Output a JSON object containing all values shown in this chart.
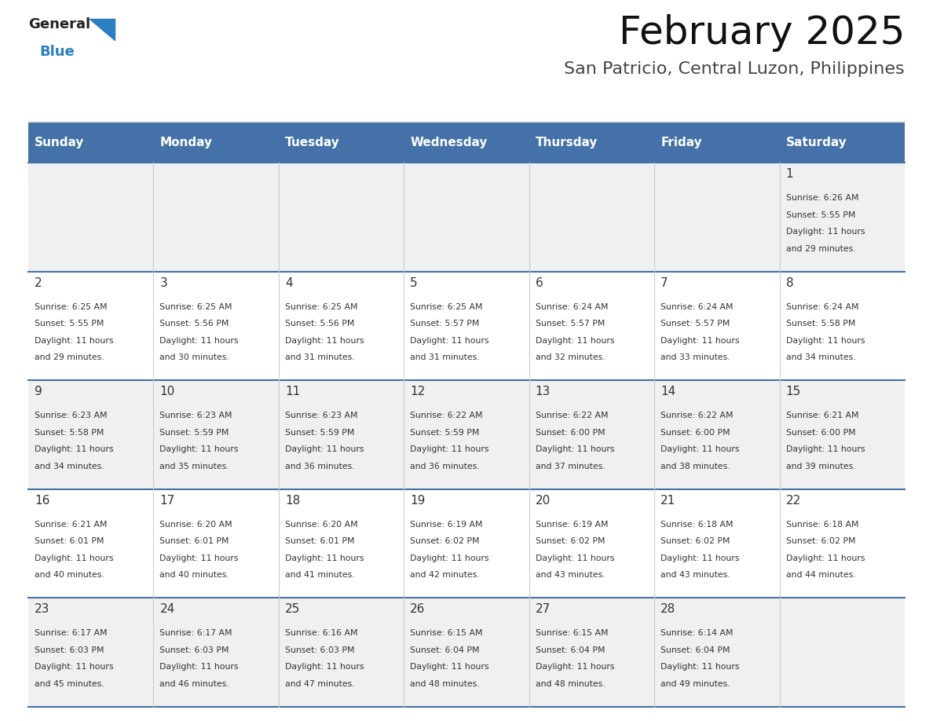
{
  "title": "February 2025",
  "subtitle": "San Patricio, Central Luzon, Philippines",
  "header_color": "#4472a8",
  "header_text_color": "#ffffff",
  "day_headers": [
    "Sunday",
    "Monday",
    "Tuesday",
    "Wednesday",
    "Thursday",
    "Friday",
    "Saturday"
  ],
  "background_color": "#ffffff",
  "cell_bg_even": "#f0f0f0",
  "cell_bg_odd": "#ffffff",
  "cell_border_color": "#4472a8",
  "text_color": "#333333",
  "logo_color1": "#222222",
  "logo_color2": "#2a7fc1",
  "logo_triangle_color": "#2a7fc1",
  "days": [
    {
      "day": 1,
      "col": 6,
      "row": 0,
      "sunrise": "6:26 AM",
      "sunset": "5:55 PM",
      "daylight": "11 hours and 29 minutes"
    },
    {
      "day": 2,
      "col": 0,
      "row": 1,
      "sunrise": "6:25 AM",
      "sunset": "5:55 PM",
      "daylight": "11 hours and 29 minutes"
    },
    {
      "day": 3,
      "col": 1,
      "row": 1,
      "sunrise": "6:25 AM",
      "sunset": "5:56 PM",
      "daylight": "11 hours and 30 minutes"
    },
    {
      "day": 4,
      "col": 2,
      "row": 1,
      "sunrise": "6:25 AM",
      "sunset": "5:56 PM",
      "daylight": "11 hours and 31 minutes"
    },
    {
      "day": 5,
      "col": 3,
      "row": 1,
      "sunrise": "6:25 AM",
      "sunset": "5:57 PM",
      "daylight": "11 hours and 31 minutes"
    },
    {
      "day": 6,
      "col": 4,
      "row": 1,
      "sunrise": "6:24 AM",
      "sunset": "5:57 PM",
      "daylight": "11 hours and 32 minutes"
    },
    {
      "day": 7,
      "col": 5,
      "row": 1,
      "sunrise": "6:24 AM",
      "sunset": "5:57 PM",
      "daylight": "11 hours and 33 minutes"
    },
    {
      "day": 8,
      "col": 6,
      "row": 1,
      "sunrise": "6:24 AM",
      "sunset": "5:58 PM",
      "daylight": "11 hours and 34 minutes"
    },
    {
      "day": 9,
      "col": 0,
      "row": 2,
      "sunrise": "6:23 AM",
      "sunset": "5:58 PM",
      "daylight": "11 hours and 34 minutes"
    },
    {
      "day": 10,
      "col": 1,
      "row": 2,
      "sunrise": "6:23 AM",
      "sunset": "5:59 PM",
      "daylight": "11 hours and 35 minutes"
    },
    {
      "day": 11,
      "col": 2,
      "row": 2,
      "sunrise": "6:23 AM",
      "sunset": "5:59 PM",
      "daylight": "11 hours and 36 minutes"
    },
    {
      "day": 12,
      "col": 3,
      "row": 2,
      "sunrise": "6:22 AM",
      "sunset": "5:59 PM",
      "daylight": "11 hours and 36 minutes"
    },
    {
      "day": 13,
      "col": 4,
      "row": 2,
      "sunrise": "6:22 AM",
      "sunset": "6:00 PM",
      "daylight": "11 hours and 37 minutes"
    },
    {
      "day": 14,
      "col": 5,
      "row": 2,
      "sunrise": "6:22 AM",
      "sunset": "6:00 PM",
      "daylight": "11 hours and 38 minutes"
    },
    {
      "day": 15,
      "col": 6,
      "row": 2,
      "sunrise": "6:21 AM",
      "sunset": "6:00 PM",
      "daylight": "11 hours and 39 minutes"
    },
    {
      "day": 16,
      "col": 0,
      "row": 3,
      "sunrise": "6:21 AM",
      "sunset": "6:01 PM",
      "daylight": "11 hours and 40 minutes"
    },
    {
      "day": 17,
      "col": 1,
      "row": 3,
      "sunrise": "6:20 AM",
      "sunset": "6:01 PM",
      "daylight": "11 hours and 40 minutes"
    },
    {
      "day": 18,
      "col": 2,
      "row": 3,
      "sunrise": "6:20 AM",
      "sunset": "6:01 PM",
      "daylight": "11 hours and 41 minutes"
    },
    {
      "day": 19,
      "col": 3,
      "row": 3,
      "sunrise": "6:19 AM",
      "sunset": "6:02 PM",
      "daylight": "11 hours and 42 minutes"
    },
    {
      "day": 20,
      "col": 4,
      "row": 3,
      "sunrise": "6:19 AM",
      "sunset": "6:02 PM",
      "daylight": "11 hours and 43 minutes"
    },
    {
      "day": 21,
      "col": 5,
      "row": 3,
      "sunrise": "6:18 AM",
      "sunset": "6:02 PM",
      "daylight": "11 hours and 43 minutes"
    },
    {
      "day": 22,
      "col": 6,
      "row": 3,
      "sunrise": "6:18 AM",
      "sunset": "6:02 PM",
      "daylight": "11 hours and 44 minutes"
    },
    {
      "day": 23,
      "col": 0,
      "row": 4,
      "sunrise": "6:17 AM",
      "sunset": "6:03 PM",
      "daylight": "11 hours and 45 minutes"
    },
    {
      "day": 24,
      "col": 1,
      "row": 4,
      "sunrise": "6:17 AM",
      "sunset": "6:03 PM",
      "daylight": "11 hours and 46 minutes"
    },
    {
      "day": 25,
      "col": 2,
      "row": 4,
      "sunrise": "6:16 AM",
      "sunset": "6:03 PM",
      "daylight": "11 hours and 47 minutes"
    },
    {
      "day": 26,
      "col": 3,
      "row": 4,
      "sunrise": "6:15 AM",
      "sunset": "6:04 PM",
      "daylight": "11 hours and 48 minutes"
    },
    {
      "day": 27,
      "col": 4,
      "row": 4,
      "sunrise": "6:15 AM",
      "sunset": "6:04 PM",
      "daylight": "11 hours and 48 minutes"
    },
    {
      "day": 28,
      "col": 5,
      "row": 4,
      "sunrise": "6:14 AM",
      "sunset": "6:04 PM",
      "daylight": "11 hours and 49 minutes"
    }
  ],
  "num_rows": 5,
  "num_cols": 7
}
